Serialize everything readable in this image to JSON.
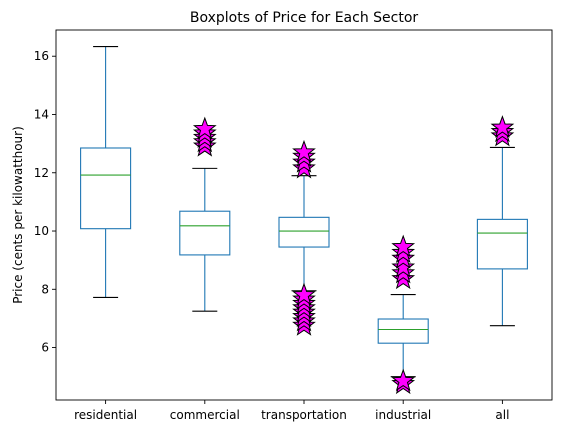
{
  "chart_data": {
    "type": "box",
    "title": "Boxplots of Price for Each Sector",
    "xlabel": "",
    "ylabel": "Price (cents per kilowatthour)",
    "ylim": [
      4.2,
      16.9
    ],
    "yticks": [
      6,
      8,
      10,
      12,
      14,
      16
    ],
    "grid": false,
    "colors": {
      "box": "#1f77b4",
      "median": "#2ca02c",
      "whisker_cap": "#000000",
      "outlier_fill": "#ff00ff",
      "outlier_edge": "#000000"
    },
    "categories": [
      "residential",
      "commercial",
      "transportation",
      "industrial",
      "all"
    ],
    "boxes": [
      {
        "name": "residential",
        "whisker_low": 7.72,
        "q1": 10.08,
        "median": 11.92,
        "q3": 12.85,
        "whisker_high": 16.33,
        "outliers": []
      },
      {
        "name": "commercial",
        "whisker_low": 7.25,
        "q1": 9.18,
        "median": 10.18,
        "q3": 10.68,
        "whisker_high": 12.15,
        "outliers": [
          12.9,
          13.05,
          13.2,
          13.35,
          13.5
        ]
      },
      {
        "name": "transportation",
        "whisker_low": 7.95,
        "q1": 9.45,
        "median": 10.0,
        "q3": 10.47,
        "whisker_high": 11.9,
        "outliers": [
          6.75,
          6.9,
          7.05,
          7.2,
          7.35,
          7.5,
          7.65,
          7.8,
          12.15,
          12.35,
          12.55,
          12.7
        ]
      },
      {
        "name": "industrial",
        "whisker_low": 5.0,
        "q1": 6.15,
        "median": 6.62,
        "q3": 6.98,
        "whisker_high": 7.82,
        "outliers": [
          4.75,
          4.85,
          8.35,
          8.55,
          8.75,
          9.05,
          9.25,
          9.45
        ]
      },
      {
        "name": "all",
        "whisker_low": 6.75,
        "q1": 8.7,
        "median": 9.93,
        "q3": 10.4,
        "whisker_high": 12.87,
        "outliers": [
          13.25,
          13.4,
          13.55
        ]
      }
    ]
  }
}
